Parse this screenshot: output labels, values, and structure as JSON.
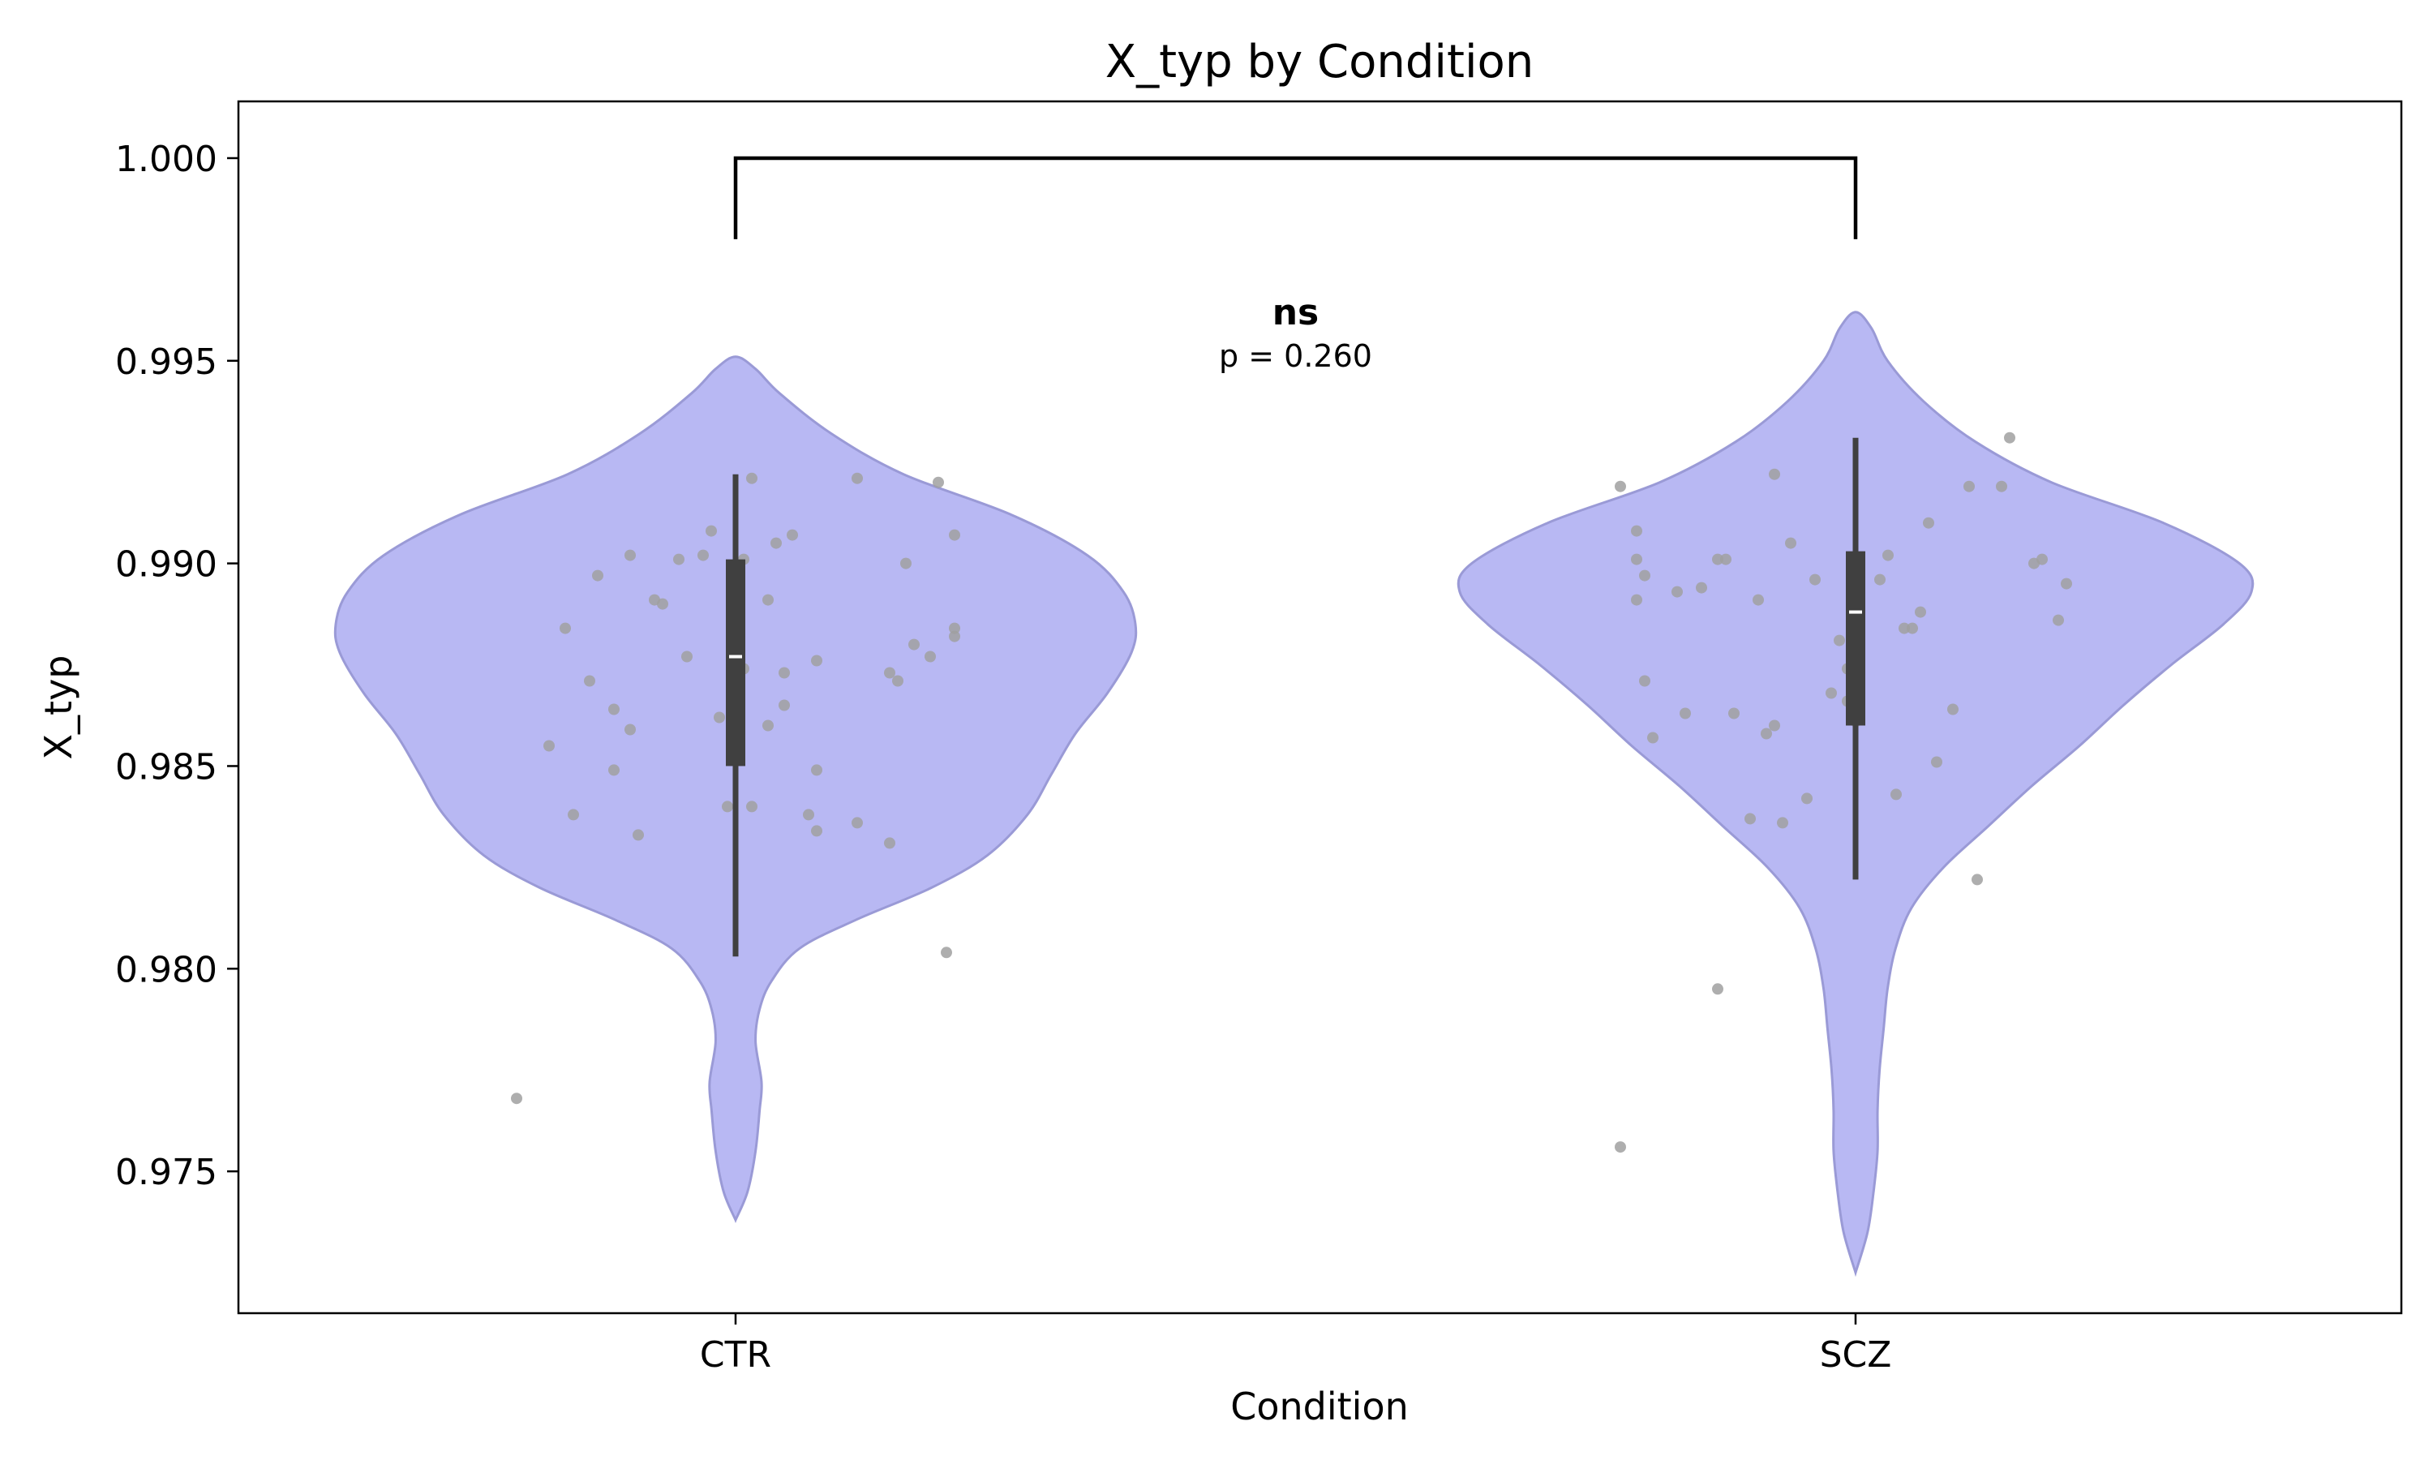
{
  "chart_data": {
    "type": "violin",
    "title": "X_typ by Condition",
    "xlabel": "Condition",
    "ylabel": "X_typ",
    "categories": [
      "CTR",
      "SCZ"
    ],
    "ylim": [
      0.9715,
      1.0014
    ],
    "yticks": [
      0.975,
      0.98,
      0.985,
      0.99,
      0.995,
      1.0
    ],
    "ytick_labels": [
      "0.975",
      "0.980",
      "0.985",
      "0.990",
      "0.995",
      "1.000"
    ],
    "grid": false,
    "colors": {
      "violin_fill": "#b8b8f3",
      "violin_edge": "#9a9ad6",
      "box": "#404040",
      "median": "#ffffff",
      "points": "#a0a0a0",
      "bracket": "#000000"
    },
    "violins": [
      {
        "category": "CTR",
        "box": {
          "whisker_low": 0.9803,
          "q1": 0.985,
          "median": 0.9877,
          "q3": 0.9901,
          "whisker_high": 0.9922
        },
        "profile": [
          [
            0.9738,
            0.0
          ],
          [
            0.9745,
            0.03
          ],
          [
            0.9755,
            0.05
          ],
          [
            0.9765,
            0.06
          ],
          [
            0.9772,
            0.065
          ],
          [
            0.9782,
            0.05
          ],
          [
            0.979,
            0.06
          ],
          [
            0.9797,
            0.09
          ],
          [
            0.9805,
            0.16
          ],
          [
            0.9812,
            0.3
          ],
          [
            0.982,
            0.49
          ],
          [
            0.9828,
            0.63
          ],
          [
            0.9838,
            0.73
          ],
          [
            0.9848,
            0.79
          ],
          [
            0.9858,
            0.85
          ],
          [
            0.9868,
            0.93
          ],
          [
            0.9878,
            0.99
          ],
          [
            0.9885,
            1.0
          ],
          [
            0.9893,
            0.97
          ],
          [
            0.9902,
            0.88
          ],
          [
            0.9912,
            0.69
          ],
          [
            0.9922,
            0.42
          ],
          [
            0.9932,
            0.24
          ],
          [
            0.9942,
            0.11
          ],
          [
            0.9948,
            0.05
          ],
          [
            0.9951,
            0.0
          ]
        ],
        "points": [
          [
            -0.27,
            0.9768
          ],
          [
            -0.23,
            0.9855
          ],
          [
            -0.21,
            0.9884
          ],
          [
            -0.2,
            0.9838
          ],
          [
            -0.18,
            0.9871
          ],
          [
            -0.17,
            0.9897
          ],
          [
            -0.15,
            0.9864
          ],
          [
            -0.15,
            0.9849
          ],
          [
            -0.13,
            0.9859
          ],
          [
            -0.13,
            0.9902
          ],
          [
            -0.12,
            0.9833
          ],
          [
            -0.1,
            0.9891
          ],
          [
            -0.09,
            0.989
          ],
          [
            -0.07,
            0.9901
          ],
          [
            -0.06,
            0.9877
          ],
          [
            -0.04,
            0.9902
          ],
          [
            -0.03,
            0.9908
          ],
          [
            -0.02,
            0.9862
          ],
          [
            -0.01,
            0.984
          ],
          [
            0.0,
            0.9891
          ],
          [
            0.0,
            0.9885
          ],
          [
            0.01,
            0.9874
          ],
          [
            0.01,
            0.9901
          ],
          [
            0.02,
            0.984
          ],
          [
            0.02,
            0.9921
          ],
          [
            0.04,
            0.9891
          ],
          [
            0.04,
            0.986
          ],
          [
            0.05,
            0.9905
          ],
          [
            0.06,
            0.9865
          ],
          [
            0.06,
            0.9873
          ],
          [
            0.07,
            0.9907
          ],
          [
            0.09,
            0.9838
          ],
          [
            0.1,
            0.9876
          ],
          [
            0.1,
            0.9849
          ],
          [
            0.1,
            0.9834
          ],
          [
            0.15,
            0.9836
          ],
          [
            0.15,
            0.9921
          ],
          [
            0.19,
            0.9831
          ],
          [
            0.19,
            0.9873
          ],
          [
            0.2,
            0.9871
          ],
          [
            0.21,
            0.99
          ],
          [
            0.22,
            0.988
          ],
          [
            0.24,
            0.9877
          ],
          [
            0.25,
            0.992
          ],
          [
            0.26,
            0.9804
          ],
          [
            0.27,
            0.9882
          ],
          [
            0.27,
            0.9884
          ],
          [
            0.27,
            0.9907
          ]
        ]
      },
      {
        "category": "SCZ",
        "box": {
          "whisker_low": 0.9822,
          "q1": 0.986,
          "median": 0.9888,
          "q3": 0.9903,
          "whisker_high": 0.9931
        },
        "profile": [
          [
            0.9725,
            0.0
          ],
          [
            0.9735,
            0.03
          ],
          [
            0.9745,
            0.045
          ],
          [
            0.9755,
            0.055
          ],
          [
            0.9765,
            0.055
          ],
          [
            0.9775,
            0.06
          ],
          [
            0.9785,
            0.07
          ],
          [
            0.9795,
            0.08
          ],
          [
            0.9805,
            0.1
          ],
          [
            0.9815,
            0.14
          ],
          [
            0.9825,
            0.22
          ],
          [
            0.9835,
            0.33
          ],
          [
            0.9845,
            0.44
          ],
          [
            0.9855,
            0.56
          ],
          [
            0.9865,
            0.67
          ],
          [
            0.9875,
            0.79
          ],
          [
            0.9885,
            0.92
          ],
          [
            0.9893,
            0.99
          ],
          [
            0.99,
            0.96
          ],
          [
            0.991,
            0.77
          ],
          [
            0.992,
            0.49
          ],
          [
            0.993,
            0.3
          ],
          [
            0.994,
            0.17
          ],
          [
            0.995,
            0.08
          ],
          [
            0.9958,
            0.04
          ],
          [
            0.9962,
            0.0
          ]
        ],
        "points": [
          [
            -0.29,
            0.9756
          ],
          [
            -0.29,
            0.9919
          ],
          [
            -0.27,
            0.9891
          ],
          [
            -0.27,
            0.9908
          ],
          [
            -0.27,
            0.9901
          ],
          [
            -0.26,
            0.9897
          ],
          [
            -0.26,
            0.9871
          ],
          [
            -0.25,
            0.9857
          ],
          [
            -0.22,
            0.9893
          ],
          [
            -0.21,
            0.9863
          ],
          [
            -0.19,
            0.9894
          ],
          [
            -0.17,
            0.9795
          ],
          [
            -0.17,
            0.9901
          ],
          [
            -0.16,
            0.9901
          ],
          [
            -0.15,
            0.9863
          ],
          [
            -0.13,
            0.9837
          ],
          [
            -0.12,
            0.9891
          ],
          [
            -0.11,
            0.9858
          ],
          [
            -0.1,
            0.986
          ],
          [
            -0.1,
            0.9922
          ],
          [
            -0.09,
            0.9836
          ],
          [
            -0.08,
            0.9905
          ],
          [
            -0.06,
            0.9842
          ],
          [
            -0.05,
            0.9896
          ],
          [
            -0.03,
            0.9868
          ],
          [
            -0.02,
            0.9881
          ],
          [
            -0.01,
            0.9874
          ],
          [
            -0.01,
            0.9866
          ],
          [
            0.0,
            0.9889
          ],
          [
            0.0,
            0.9861
          ],
          [
            0.03,
            0.9896
          ],
          [
            0.04,
            0.9902
          ],
          [
            0.05,
            0.9843
          ],
          [
            0.06,
            0.9884
          ],
          [
            0.07,
            0.9884
          ],
          [
            0.08,
            0.9888
          ],
          [
            0.09,
            0.991
          ],
          [
            0.1,
            0.9851
          ],
          [
            0.12,
            0.9864
          ],
          [
            0.14,
            0.9919
          ],
          [
            0.15,
            0.9822
          ],
          [
            0.18,
            0.9919
          ],
          [
            0.19,
            0.9931
          ],
          [
            0.22,
            0.99
          ],
          [
            0.23,
            0.9901
          ],
          [
            0.25,
            0.9886
          ],
          [
            0.26,
            0.9895
          ]
        ]
      }
    ],
    "annotation": {
      "pair": [
        "CTR",
        "SCZ"
      ],
      "bracket_y": 1.0,
      "bracket_tip_y": 0.998,
      "label": "ns",
      "pvalue_text": "p = 0.260"
    }
  }
}
